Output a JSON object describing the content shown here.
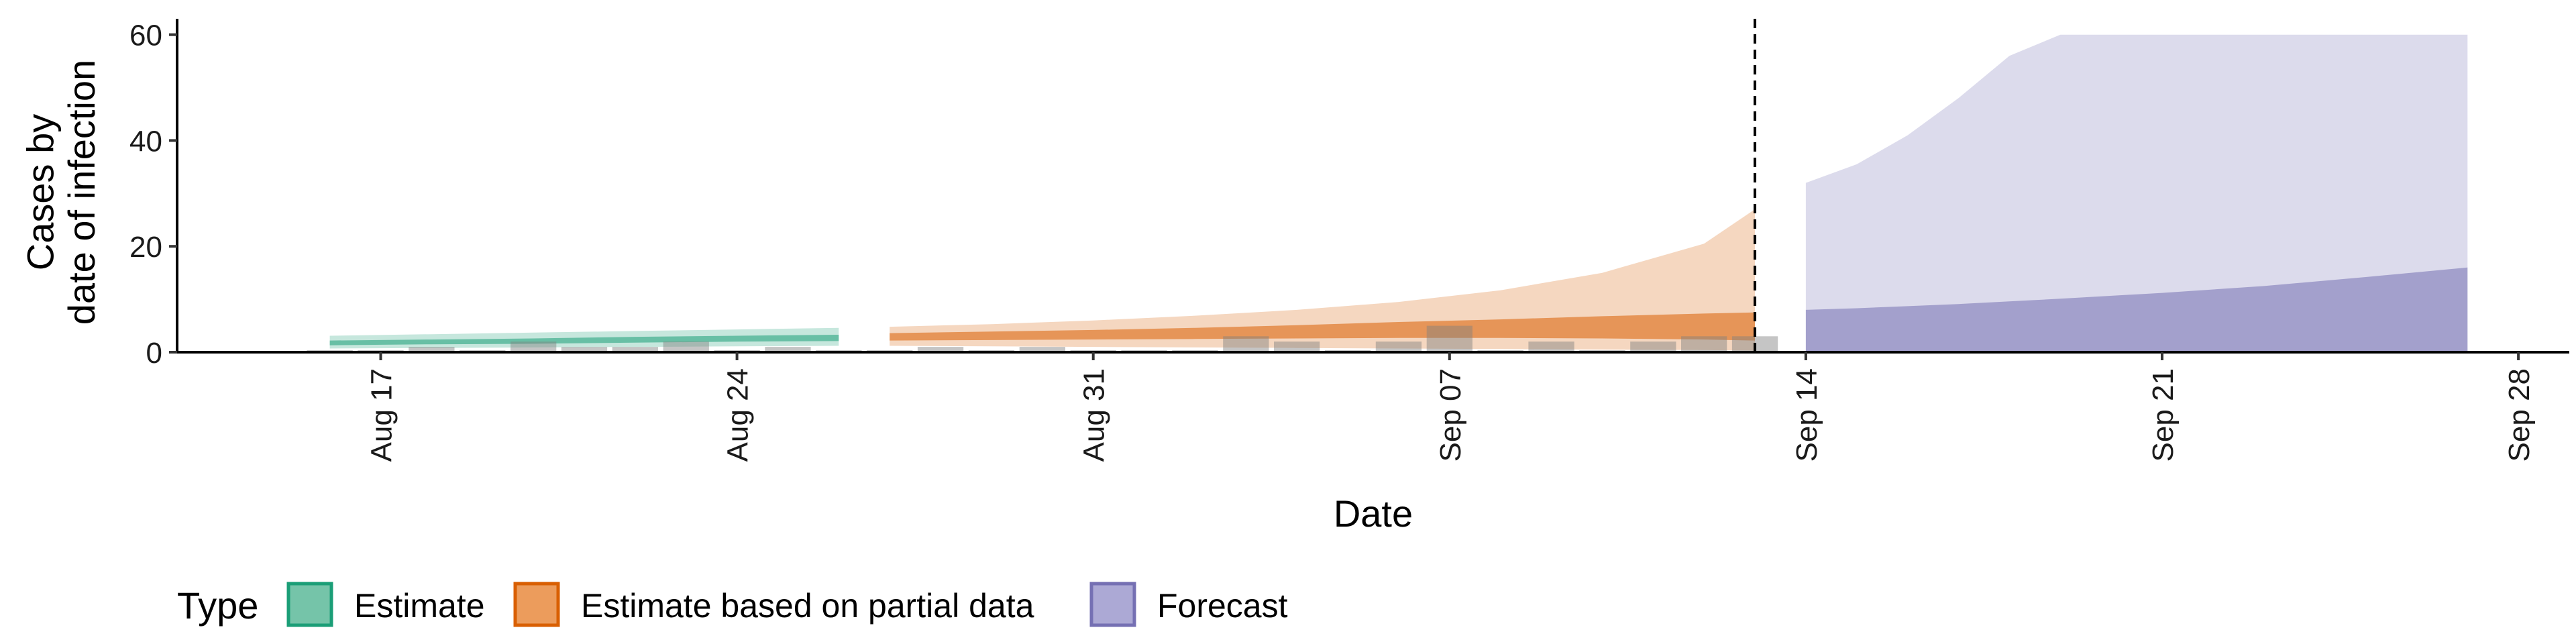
{
  "chart_data": {
    "type": "area",
    "xlabel": "Date",
    "ylabel_lines": [
      "Cases by",
      "date of infection"
    ],
    "ylim": [
      0,
      63
    ],
    "y_ticks": [
      0,
      20,
      40,
      60
    ],
    "x_range": [
      "2020-08-13",
      "2020-09-29"
    ],
    "x_ticks": [
      {
        "date": "2020-08-17",
        "label": "Aug 17"
      },
      {
        "date": "2020-08-24",
        "label": "Aug 24"
      },
      {
        "date": "2020-08-31",
        "label": "Aug 31"
      },
      {
        "date": "2020-09-07",
        "label": "Sep 07"
      },
      {
        "date": "2020-09-14",
        "label": "Sep 14"
      },
      {
        "date": "2020-09-21",
        "label": "Sep 21"
      },
      {
        "date": "2020-09-28",
        "label": "Sep 28"
      }
    ],
    "vline_date": "2020-09-13",
    "observed_cases": [
      {
        "date": "2020-08-16",
        "value": 0
      },
      {
        "date": "2020-08-17",
        "value": 0
      },
      {
        "date": "2020-08-18",
        "value": 1
      },
      {
        "date": "2020-08-19",
        "value": 0
      },
      {
        "date": "2020-08-20",
        "value": 2
      },
      {
        "date": "2020-08-21",
        "value": 1
      },
      {
        "date": "2020-08-22",
        "value": 1
      },
      {
        "date": "2020-08-23",
        "value": 2
      },
      {
        "date": "2020-08-24",
        "value": 0
      },
      {
        "date": "2020-08-25",
        "value": 1
      },
      {
        "date": "2020-08-26",
        "value": 0
      },
      {
        "date": "2020-08-27",
        "value": 0
      },
      {
        "date": "2020-08-28",
        "value": 1
      },
      {
        "date": "2020-08-29",
        "value": 0
      },
      {
        "date": "2020-08-30",
        "value": 1
      },
      {
        "date": "2020-08-31",
        "value": 0
      },
      {
        "date": "2020-09-01",
        "value": 0
      },
      {
        "date": "2020-09-02",
        "value": 0
      },
      {
        "date": "2020-09-03",
        "value": 3
      },
      {
        "date": "2020-09-04",
        "value": 2
      },
      {
        "date": "2020-09-05",
        "value": 0
      },
      {
        "date": "2020-09-06",
        "value": 2
      },
      {
        "date": "2020-09-07",
        "value": 5
      },
      {
        "date": "2020-09-08",
        "value": 0
      },
      {
        "date": "2020-09-09",
        "value": 2
      },
      {
        "date": "2020-09-10",
        "value": 0
      },
      {
        "date": "2020-09-11",
        "value": 2
      },
      {
        "date": "2020-09-12",
        "value": 3
      },
      {
        "date": "2020-09-13",
        "value": 3
      }
    ],
    "series": [
      {
        "name": "Estimate",
        "color": "#1b9e77",
        "points": [
          {
            "date": "2020-08-16",
            "lo90": 0.7,
            "hi90": 3.1,
            "lo50": 1.3,
            "hi50": 2.2
          },
          {
            "date": "2020-08-18",
            "lo90": 0.8,
            "hi90": 3.4,
            "lo50": 1.5,
            "hi50": 2.4
          },
          {
            "date": "2020-08-20",
            "lo90": 0.9,
            "hi90": 3.7,
            "lo50": 1.6,
            "hi50": 2.6
          },
          {
            "date": "2020-08-22",
            "lo90": 1.0,
            "hi90": 4.0,
            "lo50": 1.8,
            "hi50": 2.9
          },
          {
            "date": "2020-08-24",
            "lo90": 1.1,
            "hi90": 4.3,
            "lo50": 2.0,
            "hi50": 3.1
          },
          {
            "date": "2020-08-26",
            "lo90": 1.2,
            "hi90": 4.6,
            "lo50": 2.1,
            "hi50": 3.3
          }
        ]
      },
      {
        "name": "Estimate based on partial data",
        "color": "#d95f02",
        "points": [
          {
            "date": "2020-08-27",
            "lo90": 1.2,
            "hi90": 4.8,
            "lo50": 2.2,
            "hi50": 3.6
          },
          {
            "date": "2020-08-29",
            "lo90": 1.1,
            "hi90": 5.3,
            "lo50": 2.3,
            "hi50": 3.9
          },
          {
            "date": "2020-08-31",
            "lo90": 1.0,
            "hi90": 6.0,
            "lo50": 2.4,
            "hi50": 4.2
          },
          {
            "date": "2020-09-02",
            "lo90": 0.9,
            "hi90": 6.9,
            "lo50": 2.5,
            "hi50": 4.6
          },
          {
            "date": "2020-09-04",
            "lo90": 0.8,
            "hi90": 8.0,
            "lo50": 2.6,
            "hi50": 5.1
          },
          {
            "date": "2020-09-06",
            "lo90": 0.7,
            "hi90": 9.5,
            "lo50": 2.7,
            "hi50": 5.7
          },
          {
            "date": "2020-09-08",
            "lo90": 0.6,
            "hi90": 11.7,
            "lo50": 2.7,
            "hi50": 6.2
          },
          {
            "date": "2020-09-10",
            "lo90": 0.5,
            "hi90": 15.0,
            "lo50": 2.6,
            "hi50": 6.8
          },
          {
            "date": "2020-09-12",
            "lo90": 0.4,
            "hi90": 20.5,
            "lo50": 2.4,
            "hi50": 7.3
          },
          {
            "date": "2020-09-13",
            "lo90": 0.3,
            "hi90": 27.0,
            "lo50": 2.2,
            "hi50": 7.5
          }
        ]
      },
      {
        "name": "Forecast",
        "color": "#7570b3",
        "points": [
          {
            "date": "2020-09-14",
            "lo90": 0,
            "hi90": 32.0,
            "lo50": 0,
            "hi50": 8.0
          },
          {
            "date": "2020-09-15",
            "lo90": 0,
            "hi90": 35.5,
            "lo50": 0,
            "hi50": 8.3
          },
          {
            "date": "2020-09-16",
            "lo90": 0,
            "hi90": 41.0,
            "lo50": 0,
            "hi50": 8.7
          },
          {
            "date": "2020-09-17",
            "lo90": 0,
            "hi90": 48.0,
            "lo50": 0,
            "hi50": 9.1
          },
          {
            "date": "2020-09-18",
            "lo90": 0,
            "hi90": 56.0,
            "lo50": 0,
            "hi50": 9.6
          },
          {
            "date": "2020-09-19",
            "lo90": 0,
            "hi90": 60.0,
            "lo50": 0,
            "hi50": 10.1
          },
          {
            "date": "2020-09-21",
            "lo90": 0,
            "hi90": 60.0,
            "lo50": 0,
            "hi50": 11.2
          },
          {
            "date": "2020-09-23",
            "lo90": 0,
            "hi90": 60.0,
            "lo50": 0,
            "hi50": 12.5
          },
          {
            "date": "2020-09-25",
            "lo90": 0,
            "hi90": 60.0,
            "lo50": 0,
            "hi50": 14.2
          },
          {
            "date": "2020-09-27",
            "lo90": 0,
            "hi90": 60.0,
            "lo50": 0,
            "hi50": 16.0
          }
        ]
      }
    ],
    "legend": {
      "title": "Type",
      "position": "bottom-left",
      "items": [
        {
          "label": "Estimate",
          "fill": "#75c4a9",
          "stroke": "#1b9e77"
        },
        {
          "label": "Estimate based on partial data",
          "fill": "#ec9c5c",
          "stroke": "#d95f02"
        },
        {
          "label": "Forecast",
          "fill": "#aca9d5",
          "stroke": "#7570b3"
        }
      ]
    },
    "grid": false
  }
}
